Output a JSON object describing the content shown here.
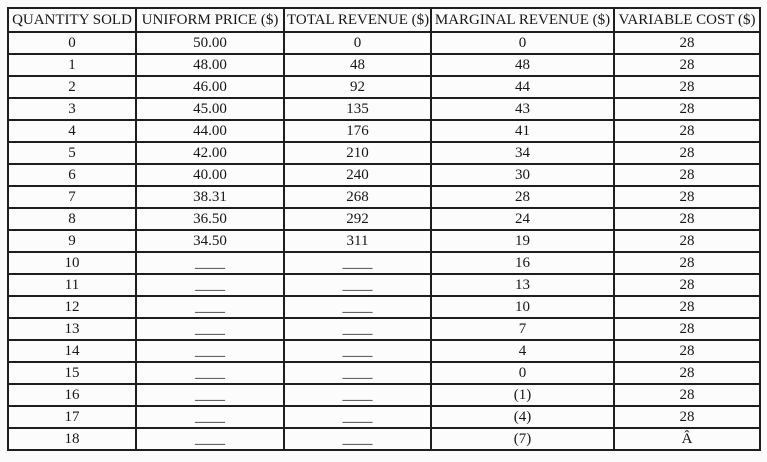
{
  "table": {
    "columns": [
      "QUANTITY SOLD",
      "UNIFORM PRICE ($)",
      "TOTAL REVENUE ($)",
      "MARGINAL REVENUE ($)",
      "VARIABLE COST ($)"
    ],
    "blank_placeholder": "____",
    "rows": [
      [
        "0",
        "50.00",
        "0",
        "0",
        "28"
      ],
      [
        "1",
        "48.00",
        "48",
        "48",
        "28"
      ],
      [
        "2",
        "46.00",
        "92",
        "44",
        "28"
      ],
      [
        "3",
        "45.00",
        "135",
        "43",
        "28"
      ],
      [
        "4",
        "44.00",
        "176",
        "41",
        "28"
      ],
      [
        "5",
        "42.00",
        "210",
        "34",
        "28"
      ],
      [
        "6",
        "40.00",
        "240",
        "30",
        "28"
      ],
      [
        "7",
        "38.31",
        "268",
        "28",
        "28"
      ],
      [
        "8",
        "36.50",
        "292",
        "24",
        "28"
      ],
      [
        "9",
        "34.50",
        "311",
        "19",
        "28"
      ],
      [
        "10",
        "____",
        "____",
        "16",
        "28"
      ],
      [
        "11",
        "____",
        "____",
        "13",
        "28"
      ],
      [
        "12",
        "____",
        "____",
        "10",
        "28"
      ],
      [
        "13",
        "____",
        "____",
        "7",
        "28"
      ],
      [
        "14",
        "____",
        "____",
        "4",
        "28"
      ],
      [
        "15",
        "____",
        "____",
        "0",
        "28"
      ],
      [
        "16",
        "____",
        "____",
        "(1)",
        "28"
      ],
      [
        "17",
        "____",
        "____",
        "(4)",
        "28"
      ],
      [
        "18",
        "____",
        "____",
        "(7)",
        "Â"
      ]
    ]
  }
}
